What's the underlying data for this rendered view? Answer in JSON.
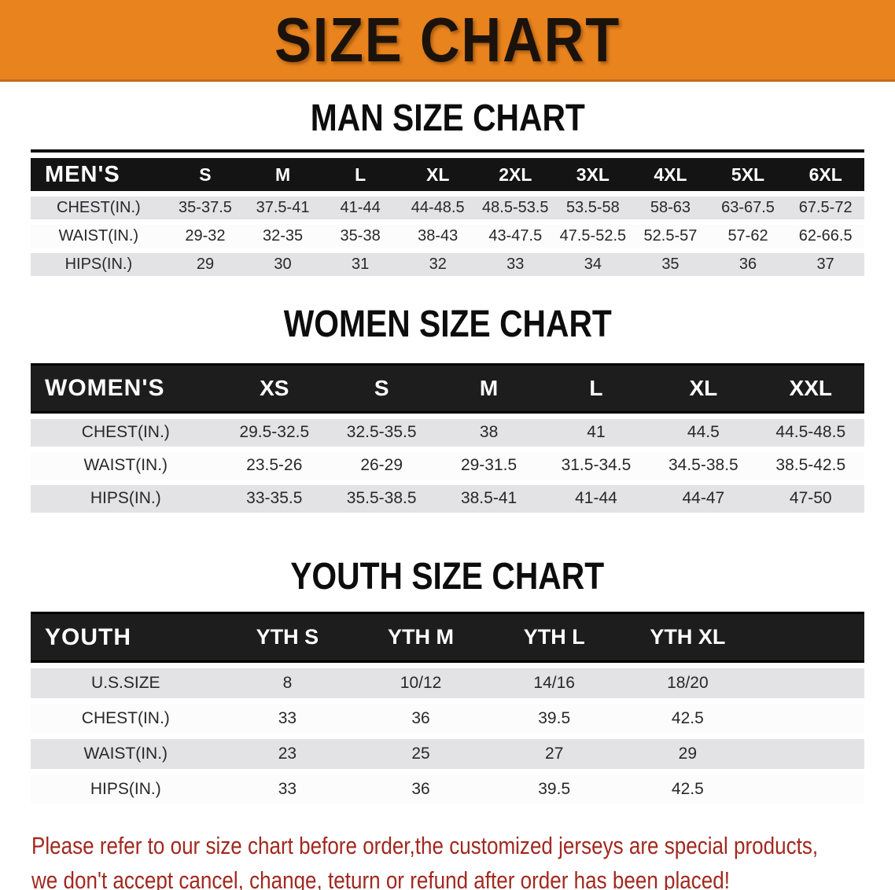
{
  "banner": {
    "title": "SIZE CHART"
  },
  "theme": {
    "banner-bg": "#e8831e",
    "banner-edge": "#c06e1c",
    "banner-text": "#1b130b",
    "band-bg": "#1a1a1a",
    "band-text": "#ffffff",
    "shade-row": "#e3e3e6",
    "plain-row": "#fcfcfc",
    "cell-text": "#28282a",
    "title-text": "#0d0d0d",
    "footer-red": "#a1291f"
  },
  "sections": {
    "men": {
      "title": "MAN SIZE CHART"
    },
    "women": {
      "title": "WOMEN SIZE CHART"
    },
    "youth": {
      "title": "YOUTH SIZE CHART"
    }
  },
  "tables": {
    "men": {
      "header": [
        "MEN'S",
        "S",
        "M",
        "L",
        "XL",
        "2XL",
        "3XL",
        "4XL",
        "5XL",
        "6XL"
      ],
      "rows": [
        [
          "CHEST(IN.)",
          "35-37.5",
          "37.5-41",
          "41-44",
          "44-48.5",
          "48.5-53.5",
          "53.5-58",
          "58-63",
          "63-67.5",
          "67.5-72"
        ],
        [
          "WAIST(IN.)",
          "29-32",
          "32-35",
          "35-38",
          "38-43",
          "43-47.5",
          "47.5-52.5",
          "52.5-57",
          "57-62",
          "62-66.5"
        ],
        [
          "HIPS(IN.)",
          "29",
          "30",
          "31",
          "32",
          "33",
          "34",
          "35",
          "36",
          "37"
        ]
      ]
    },
    "women": {
      "header": [
        "WOMEN'S",
        "XS",
        "S",
        "M",
        "L",
        "XL",
        "XXL"
      ],
      "rows": [
        [
          "CHEST(IN.)",
          "29.5-32.5",
          "32.5-35.5",
          "38",
          "41",
          "44.5",
          "44.5-48.5"
        ],
        [
          "WAIST(IN.)",
          "23.5-26",
          "26-29",
          "29-31.5",
          "31.5-34.5",
          "34.5-38.5",
          "38.5-42.5"
        ],
        [
          "HIPS(IN.)",
          "33-35.5",
          "35.5-38.5",
          "38.5-41",
          "41-44",
          "44-47",
          "47-50"
        ]
      ]
    },
    "youth": {
      "header": [
        "YOUTH",
        "YTH S",
        "YTH M",
        "YTH L",
        "YTH XL"
      ],
      "columns": 6,
      "rows": [
        [
          "U.S.SIZE",
          "8",
          "10/12",
          "14/16",
          "18/20"
        ],
        [
          "CHEST(IN.)",
          "33",
          "36",
          "39.5",
          "42.5"
        ],
        [
          "WAIST(IN.)",
          "23",
          "25",
          "27",
          "29"
        ],
        [
          "HIPS(IN.)",
          "33",
          "36",
          "39.5",
          "42.5"
        ]
      ]
    }
  },
  "footer": {
    "line1": "Please refer to our size chart before order,the customized jerseys are special products,",
    "line2": "we don't accept cancel, change, teturn or refund after order has been placed!"
  }
}
